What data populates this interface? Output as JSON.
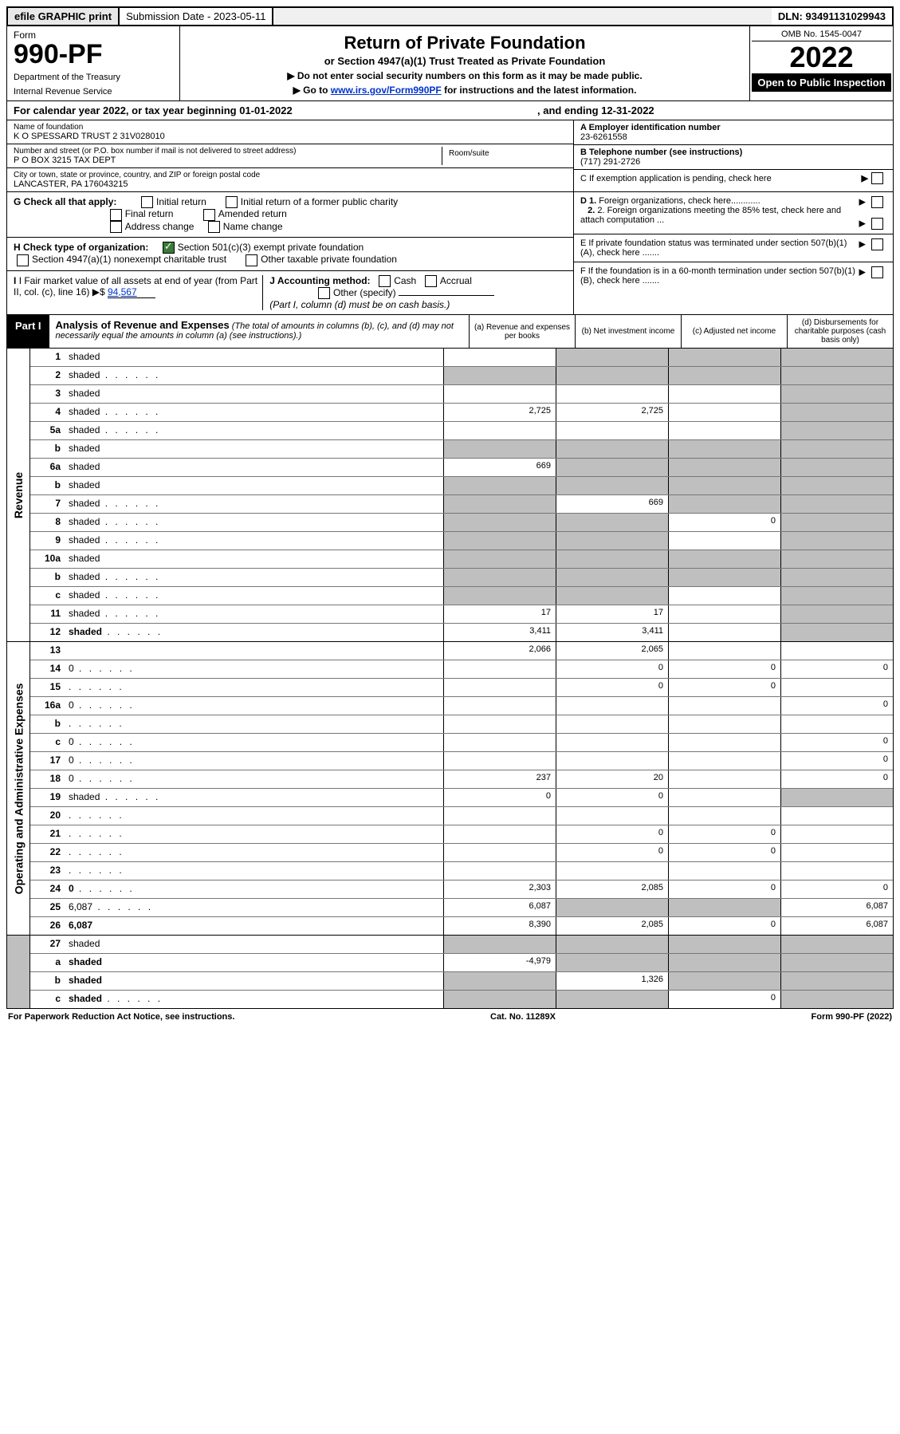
{
  "topbar": {
    "efile": "efile GRAPHIC print",
    "sub_date_label": "Submission Date - 2023-05-11",
    "dln": "DLN: 93491131029943"
  },
  "header": {
    "form_label": "Form",
    "form_number": "990-PF",
    "dept1": "Department of the Treasury",
    "dept2": "Internal Revenue Service",
    "title": "Return of Private Foundation",
    "subtitle": "or Section 4947(a)(1) Trust Treated as Private Foundation",
    "instr1": "▶ Do not enter social security numbers on this form as it may be made public.",
    "instr2": "▶ Go to www.irs.gov/Form990PF for instructions and the latest information.",
    "omb": "OMB No. 1545-0047",
    "year": "2022",
    "open": "Open to Public Inspection"
  },
  "calyear": {
    "text_left": "For calendar year 2022, or tax year beginning 01-01-2022",
    "text_right": ", and ending 12-31-2022"
  },
  "entity": {
    "name_label": "Name of foundation",
    "name": "K O SPESSARD TRUST 2 31V028010",
    "addr_label": "Number and street (or P.O. box number if mail is not delivered to street address)",
    "addr": "P O BOX 3215 TAX DEPT",
    "room_label": "Room/suite",
    "city_label": "City or town, state or province, country, and ZIP or foreign postal code",
    "city": "LANCASTER, PA  176043215",
    "ein_label": "A Employer identification number",
    "ein": "23-6261558",
    "phone_label": "B Telephone number (see instructions)",
    "phone": "(717) 291-2726",
    "c_label": "C If exemption application is pending, check here"
  },
  "checks": {
    "g_label": "G Check all that apply:",
    "g_initial": "Initial return",
    "g_initial_former": "Initial return of a former public charity",
    "g_final": "Final return",
    "g_amended": "Amended return",
    "g_address": "Address change",
    "g_name": "Name change",
    "h_label": "H Check type of organization:",
    "h_501c3": "Section 501(c)(3) exempt private foundation",
    "h_4947": "Section 4947(a)(1) nonexempt charitable trust",
    "h_other": "Other taxable private foundation",
    "i_label": "I Fair market value of all assets at end of year (from Part II, col. (c), line 16)",
    "i_value": "94,567",
    "j_label": "J Accounting method:",
    "j_cash": "Cash",
    "j_accrual": "Accrual",
    "j_other": "Other (specify)",
    "j_note": "(Part I, column (d) must be on cash basis.)",
    "d1": "D 1. Foreign organizations, check here............",
    "d2": "2. Foreign organizations meeting the 85% test, check here and attach computation ...",
    "e": "E  If private foundation status was terminated under section 507(b)(1)(A), check here .......",
    "f": "F  If the foundation is in a 60-month termination under section 507(b)(1)(B), check here ......."
  },
  "part1": {
    "badge": "Part I",
    "title": "Analysis of Revenue and Expenses",
    "note": "(The total of amounts in columns (b), (c), and (d) may not necessarily equal the amounts in column (a) (see instructions).)",
    "col_a": "(a) Revenue and expenses per books",
    "col_b": "(b) Net investment income",
    "col_c": "(c) Adjusted net income",
    "col_d": "(d) Disbursements for charitable purposes (cash basis only)"
  },
  "sides": {
    "revenue": "Revenue",
    "expenses": "Operating and Administrative Expenses"
  },
  "rows": [
    {
      "n": "1",
      "d": "shaded",
      "a": "",
      "b": "shaded",
      "c": "shaded"
    },
    {
      "n": "2",
      "d": "shaded",
      "a": "shaded",
      "b": "shaded",
      "c": "shaded",
      "dotted": true
    },
    {
      "n": "3",
      "d": "shaded",
      "a": "",
      "b": "",
      "c": ""
    },
    {
      "n": "4",
      "d": "shaded",
      "a": "2,725",
      "b": "2,725",
      "c": "",
      "dotted": true
    },
    {
      "n": "5a",
      "d": "shaded",
      "a": "",
      "b": "",
      "c": "",
      "dotted": true
    },
    {
      "n": "b",
      "d": "shaded",
      "a": "shaded",
      "b": "shaded",
      "c": "shaded",
      "inline": true
    },
    {
      "n": "6a",
      "d": "shaded",
      "a": "669",
      "b": "shaded",
      "c": "shaded"
    },
    {
      "n": "b",
      "d": "shaded",
      "a": "shaded",
      "b": "shaded",
      "c": "shaded"
    },
    {
      "n": "7",
      "d": "shaded",
      "a": "shaded",
      "b": "669",
      "c": "shaded",
      "dotted": true
    },
    {
      "n": "8",
      "d": "shaded",
      "a": "shaded",
      "b": "shaded",
      "c": "0",
      "dotted": true
    },
    {
      "n": "9",
      "d": "shaded",
      "a": "shaded",
      "b": "shaded",
      "c": "",
      "dotted": true
    },
    {
      "n": "10a",
      "d": "shaded",
      "a": "shaded",
      "b": "shaded",
      "c": "shaded",
      "inline": true
    },
    {
      "n": "b",
      "d": "shaded",
      "a": "shaded",
      "b": "shaded",
      "c": "shaded",
      "dotted": true,
      "inline": true
    },
    {
      "n": "c",
      "d": "shaded",
      "a": "shaded",
      "b": "shaded",
      "c": "",
      "dotted": true
    },
    {
      "n": "11",
      "d": "shaded",
      "a": "17",
      "b": "17",
      "c": "",
      "dotted": true
    },
    {
      "n": "12",
      "d": "shaded",
      "a": "3,411",
      "b": "3,411",
      "c": "",
      "dotted": true,
      "bold": true
    }
  ],
  "exp_rows": [
    {
      "n": "13",
      "d": "",
      "a": "2,066",
      "b": "2,065",
      "c": ""
    },
    {
      "n": "14",
      "d": "0",
      "a": "",
      "b": "0",
      "c": "0",
      "dotted": true
    },
    {
      "n": "15",
      "d": "",
      "a": "",
      "b": "0",
      "c": "0",
      "dotted": true
    },
    {
      "n": "16a",
      "d": "0",
      "a": "",
      "b": "",
      "c": "",
      "dotted": true
    },
    {
      "n": "b",
      "d": "",
      "a": "",
      "b": "",
      "c": "",
      "dotted": true
    },
    {
      "n": "c",
      "d": "0",
      "a": "",
      "b": "",
      "c": "",
      "dotted": true
    },
    {
      "n": "17",
      "d": "0",
      "a": "",
      "b": "",
      "c": "",
      "dotted": true
    },
    {
      "n": "18",
      "d": "0",
      "a": "237",
      "b": "20",
      "c": "",
      "dotted": true
    },
    {
      "n": "19",
      "d": "shaded",
      "a": "0",
      "b": "0",
      "c": "",
      "dotted": true
    },
    {
      "n": "20",
      "d": "",
      "a": "",
      "b": "",
      "c": "",
      "dotted": true
    },
    {
      "n": "21",
      "d": "",
      "a": "",
      "b": "0",
      "c": "0",
      "dotted": true
    },
    {
      "n": "22",
      "d": "",
      "a": "",
      "b": "0",
      "c": "0",
      "dotted": true
    },
    {
      "n": "23",
      "d": "",
      "a": "",
      "b": "",
      "c": "",
      "dotted": true
    },
    {
      "n": "24",
      "d": "0",
      "a": "2,303",
      "b": "2,085",
      "c": "0",
      "dotted": true,
      "bold": true
    },
    {
      "n": "25",
      "d": "6,087",
      "a": "6,087",
      "b": "shaded",
      "c": "shaded",
      "dotted": true
    },
    {
      "n": "26",
      "d": "6,087",
      "a": "8,390",
      "b": "2,085",
      "c": "0",
      "bold": true
    }
  ],
  "net_rows": [
    {
      "n": "27",
      "d": "shaded",
      "a": "shaded",
      "b": "shaded",
      "c": "shaded"
    },
    {
      "n": "a",
      "d": "shaded",
      "a": "-4,979",
      "b": "shaded",
      "c": "shaded",
      "bold": true
    },
    {
      "n": "b",
      "d": "shaded",
      "a": "shaded",
      "b": "1,326",
      "c": "shaded",
      "bold": true
    },
    {
      "n": "c",
      "d": "shaded",
      "a": "shaded",
      "b": "shaded",
      "c": "0",
      "bold": true,
      "dotted": true
    }
  ],
  "footer": {
    "left": "For Paperwork Reduction Act Notice, see instructions.",
    "mid": "Cat. No. 11289X",
    "right": "Form 990-PF (2022)"
  }
}
